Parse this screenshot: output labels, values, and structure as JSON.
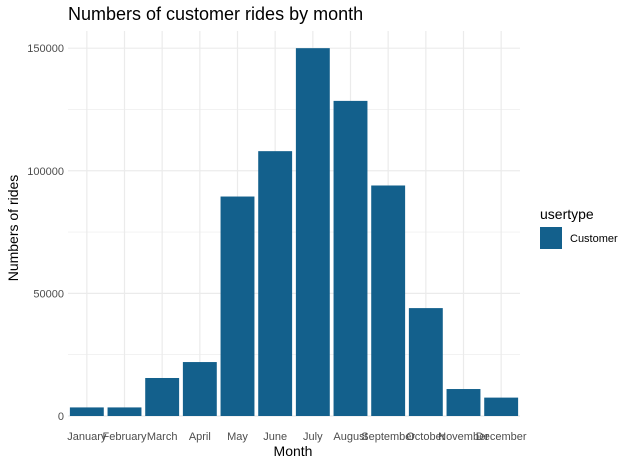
{
  "chart_data": {
    "type": "bar",
    "title": "Numbers of customer rides by month",
    "xlabel": "Month",
    "ylabel": "Numbers of rides",
    "categories": [
      "January",
      "February",
      "March",
      "April",
      "May",
      "June",
      "July",
      "August",
      "September",
      "October",
      "November",
      "December"
    ],
    "series": [
      {
        "name": "Customer",
        "values": [
          3500,
          3500,
          15500,
          22000,
          89500,
          108000,
          150000,
          128500,
          94000,
          44000,
          11000,
          7500
        ]
      }
    ],
    "ylim": [
      0,
      157000
    ],
    "yticks": [
      0,
      50000,
      100000,
      150000
    ],
    "ytick_labels": [
      "0",
      "50000",
      "100000",
      "150000"
    ],
    "grid": true,
    "legend": {
      "title": "usertype",
      "position": "right"
    },
    "colors": {
      "bar": "#13608c",
      "grid": "#ebebeb"
    }
  }
}
